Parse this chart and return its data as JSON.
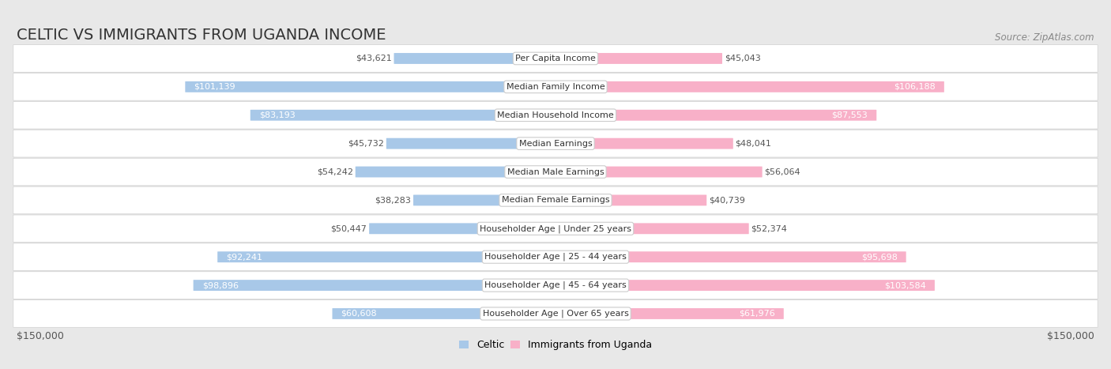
{
  "title": "CELTIC VS IMMIGRANTS FROM UGANDA INCOME",
  "source": "Source: ZipAtlas.com",
  "categories": [
    "Per Capita Income",
    "Median Family Income",
    "Median Household Income",
    "Median Earnings",
    "Median Male Earnings",
    "Median Female Earnings",
    "Householder Age | Under 25 years",
    "Householder Age | 25 - 44 years",
    "Householder Age | 45 - 64 years",
    "Householder Age | Over 65 years"
  ],
  "celtic_values": [
    43621,
    101139,
    83193,
    45732,
    54242,
    38283,
    50447,
    92241,
    98896,
    60608
  ],
  "uganda_values": [
    45043,
    106188,
    87553,
    48041,
    56064,
    40739,
    52374,
    95698,
    103584,
    61976
  ],
  "celtic_labels": [
    "$43,621",
    "$101,139",
    "$83,193",
    "$45,732",
    "$54,242",
    "$38,283",
    "$50,447",
    "$92,241",
    "$98,896",
    "$60,608"
  ],
  "uganda_labels": [
    "$45,043",
    "$106,188",
    "$87,553",
    "$48,041",
    "$56,064",
    "$40,739",
    "$52,374",
    "$95,698",
    "$103,584",
    "$61,976"
  ],
  "celtic_color": "#7bafd4",
  "uganda_color": "#f07ca0",
  "celtic_color_light": "#a8c8e8",
  "uganda_color_light": "#f8b0c8",
  "max_value": 150000,
  "background_color": "#e8e8e8",
  "row_bg_color": "#ffffff",
  "legend_celtic": "Celtic",
  "legend_uganda": "Immigrants from Uganda",
  "xlim_label_left": "$150,000",
  "xlim_label_right": "$150,000",
  "inside_label_threshold": 60000,
  "title_fontsize": 14,
  "source_fontsize": 8.5,
  "label_fontsize": 8,
  "cat_fontsize": 8,
  "axis_label_fontsize": 9
}
